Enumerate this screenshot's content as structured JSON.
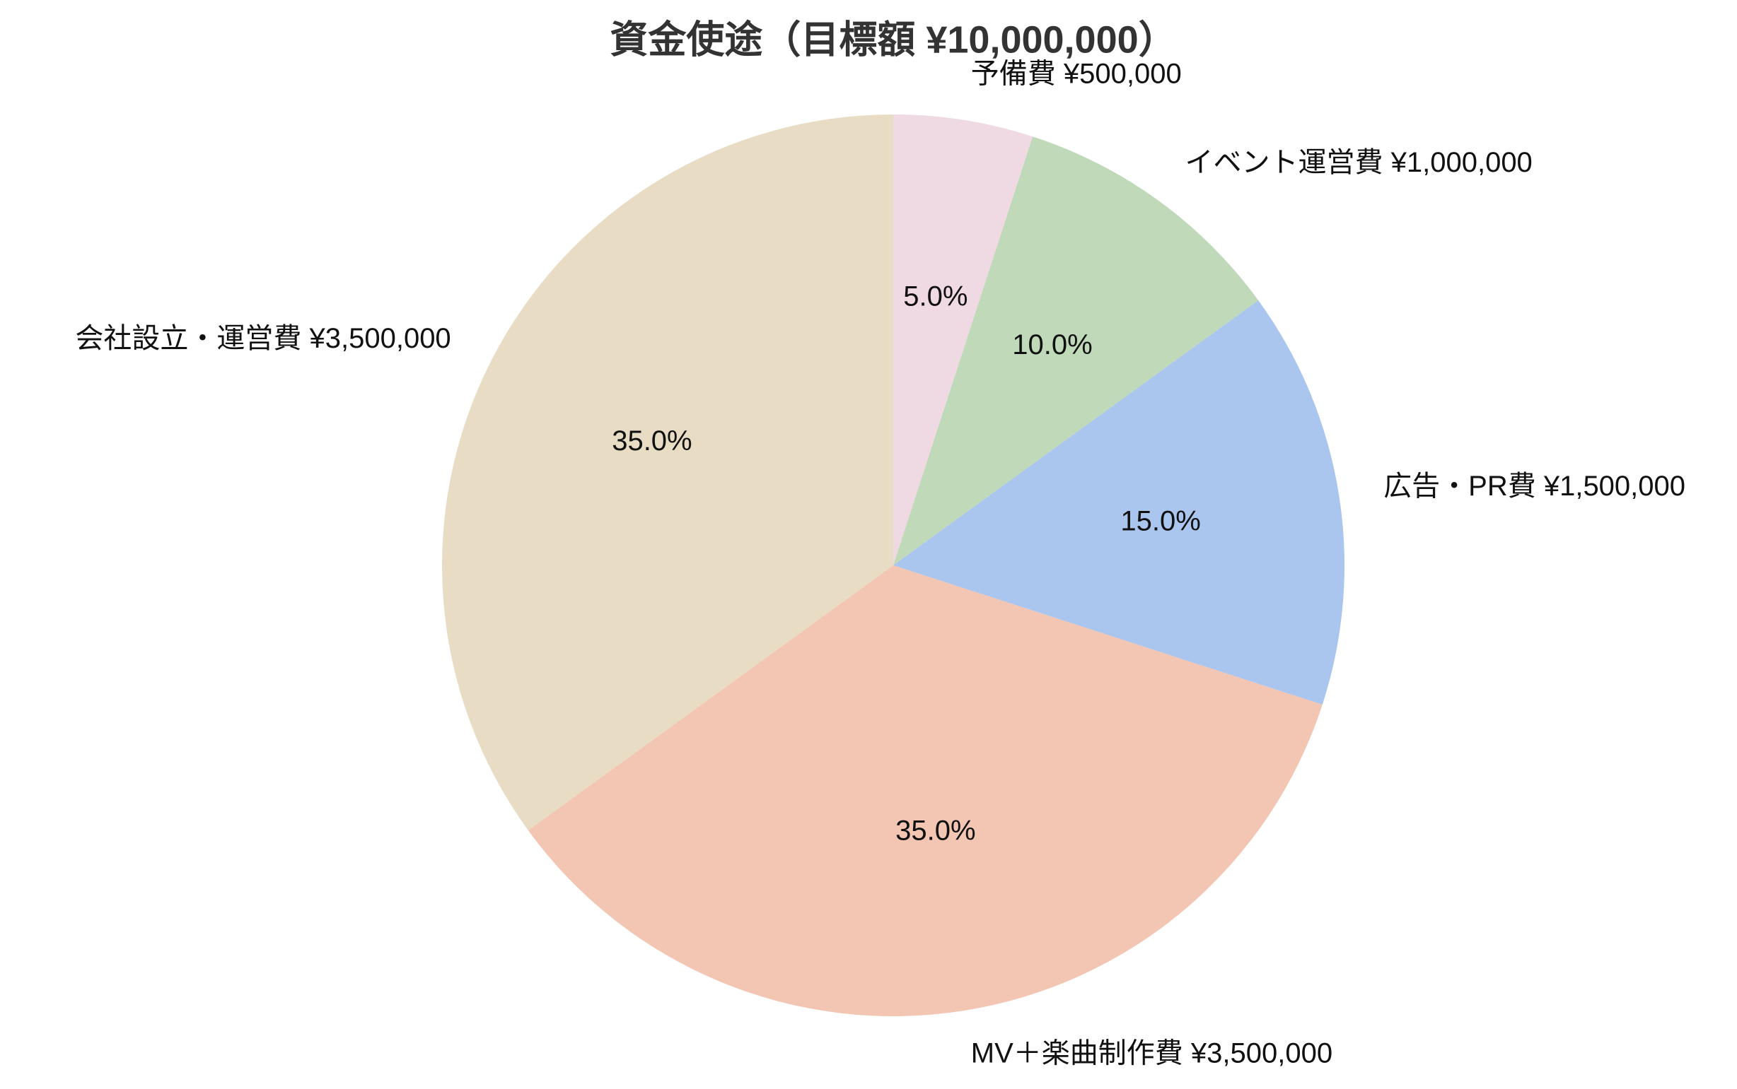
{
  "chart_data": {
    "type": "pie",
    "title": "資金使途（目標額 ¥10,000,000）",
    "categories": [
      "予備費 ¥500,000",
      "イベント運営費 ¥1,000,000",
      "広告・PR費 ¥1,500,000",
      "MV＋楽曲制作費 ¥3,500,000",
      "会社設立・運営費 ¥3,500,000"
    ],
    "values": [
      5,
      10,
      15,
      35,
      35
    ],
    "value_labels": [
      "5.0%",
      "10.0%",
      "15.0%",
      "35.0%",
      "35.0%"
    ],
    "colors": [
      "#efd9e2",
      "#c0d9b9",
      "#aac6ee",
      "#f3c5b3",
      "#e8dcc4"
    ]
  }
}
